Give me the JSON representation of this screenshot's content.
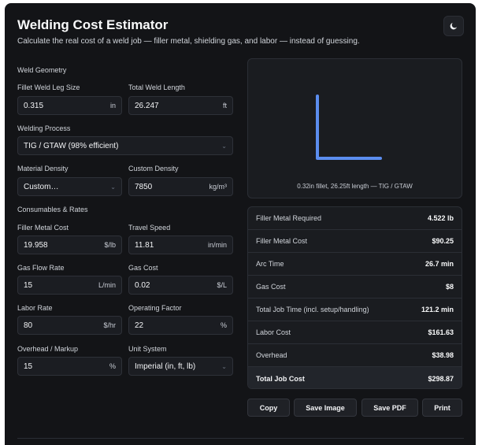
{
  "header": {
    "title": "Welding Cost Estimator",
    "subtitle": "Calculate the real cost of a weld job — filler metal, shielding gas, and labor — instead of guessing.",
    "theme_icon": "moon-icon"
  },
  "weld_geometry": {
    "section_label": "Weld Geometry",
    "fillet_leg_label": "Fillet Weld Leg Size",
    "fillet_leg_value": "0.315",
    "fillet_leg_unit": "in",
    "length_label": "Total Weld Length",
    "length_value": "26.247",
    "length_unit": "ft",
    "process_label": "Welding Process",
    "process_value": "TIG / GTAW (98% efficient)",
    "density_label": "Material Density",
    "density_value": "Custom…",
    "custom_density_label": "Custom Density",
    "custom_density_value": "7850",
    "custom_density_unit": "kg/m³"
  },
  "consumables": {
    "section_label": "Consumables & Rates",
    "filler_cost_label": "Filler Metal Cost",
    "filler_cost_value": "19.958",
    "filler_cost_unit": "$/lb",
    "travel_speed_label": "Travel Speed",
    "travel_speed_value": "11.81",
    "travel_speed_unit": "in/min",
    "gas_flow_label": "Gas Flow Rate",
    "gas_flow_value": "15",
    "gas_flow_unit": "L/min",
    "gas_cost_label": "Gas Cost",
    "gas_cost_value": "0.02",
    "gas_cost_unit": "$/L",
    "labor_rate_label": "Labor Rate",
    "labor_rate_value": "80",
    "labor_rate_unit": "$/hr",
    "operating_factor_label": "Operating Factor",
    "operating_factor_value": "22",
    "operating_factor_unit": "%",
    "overhead_label": "Overhead / Markup",
    "overhead_value": "15",
    "overhead_unit": "%",
    "unit_system_label": "Unit System",
    "unit_system_value": "Imperial (in, ft, lb)"
  },
  "preview": {
    "caption": "0.32in fillet, 26.25ft length — TIG / GTAW",
    "accent_color": "#5b8def"
  },
  "results": [
    {
      "label": "Filler Metal Required",
      "value": "4.522 lb"
    },
    {
      "label": "Filler Metal Cost",
      "value": "$90.25"
    },
    {
      "label": "Arc Time",
      "value": "26.7 min"
    },
    {
      "label": "Gas Cost",
      "value": "$8"
    },
    {
      "label": "Total Job Time (incl. setup/handling)",
      "value": "121.2 min"
    },
    {
      "label": "Labor Cost",
      "value": "$161.63"
    },
    {
      "label": "Overhead",
      "value": "$38.98"
    },
    {
      "label": "Total Job Cost",
      "value": "$298.87"
    }
  ],
  "actions": {
    "copy": "Copy",
    "save_image": "Save Image",
    "save_pdf": "Save PDF",
    "print": "Print"
  }
}
